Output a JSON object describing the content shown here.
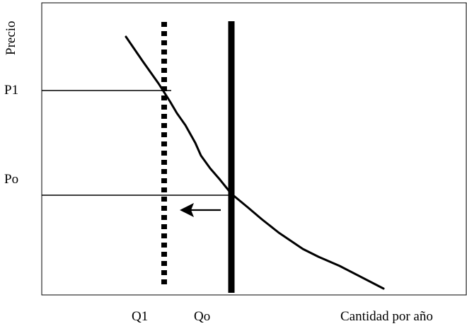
{
  "labels": {
    "y_axis": "Precio",
    "x_axis": "Cantidad por año",
    "p1": "P1",
    "po": "Po",
    "q1": "Q1",
    "qo": "Qo"
  },
  "colors": {
    "ink": "#000000",
    "background": "#ffffff"
  },
  "icons": {
    "shift_arrow": "arrow-left-icon"
  }
}
